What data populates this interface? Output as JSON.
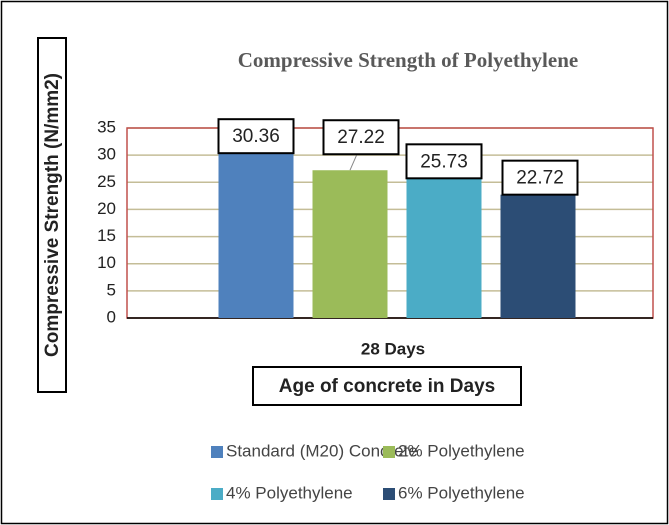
{
  "chart_data": {
    "type": "bar",
    "title": "Compressive Strength of Polyethylene",
    "ylabel": "Compressive Strength (N/mm2)",
    "xlabel": "Age of concrete in Days",
    "categories": [
      "28 Days"
    ],
    "series": [
      {
        "name": "Standard (M20) Concrete",
        "color": "#4f81bd",
        "values": [
          30.36
        ]
      },
      {
        "name": "2% Polyethylene",
        "color": "#9bbb59",
        "values": [
          27.22
        ]
      },
      {
        "name": "4% Polyethylene",
        "color": "#4bacc6",
        "values": [
          25.73
        ]
      },
      {
        "name": "6% Polyethylene",
        "color": "#2c4d75",
        "values": [
          22.72
        ]
      }
    ],
    "ylim": [
      0,
      35
    ],
    "yticks": [
      0,
      5,
      10,
      15,
      20,
      25,
      30,
      35
    ],
    "grid": true,
    "legend": "bottom"
  }
}
